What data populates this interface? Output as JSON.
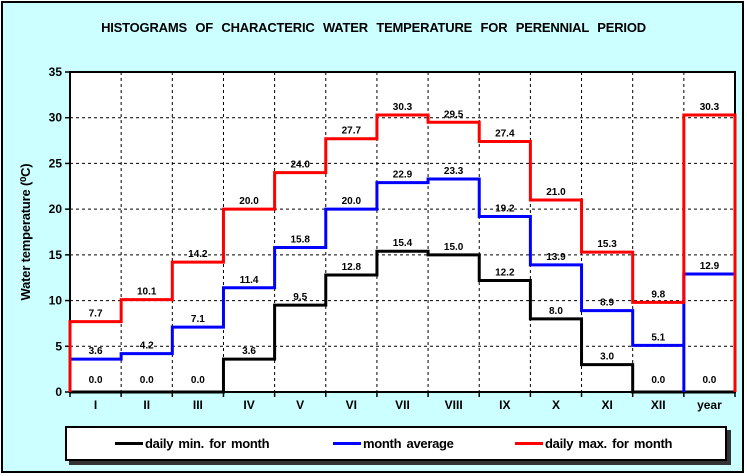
{
  "frame": {
    "background": "#CCFFFF",
    "border_color": "#000000",
    "plot_background": "#FFFFFF"
  },
  "chart_data": {
    "type": "step-histogram",
    "title": "HISTOGRAMS OF CHARACTERIC WATER TEMPERATURE FOR PERENNIAL PERIOD",
    "xlabel": "",
    "ylabel": "Water temperature (⁰C)",
    "categories": [
      "I",
      "II",
      "III",
      "IV",
      "V",
      "VI",
      "VII",
      "VIII",
      "IX",
      "X",
      "XI",
      "XII",
      "year"
    ],
    "ylim": [
      0,
      35
    ],
    "ytick_step": 5,
    "grid": true,
    "gridline_style": "dashed",
    "legend_position": "bottom",
    "series": [
      {
        "name": "daily min. for month",
        "color": "#000000",
        "values": [
          0.0,
          0.0,
          0.0,
          3.6,
          9.5,
          12.8,
          15.4,
          15.0,
          12.2,
          8.0,
          3.0,
          0.0,
          0.0
        ]
      },
      {
        "name": "month average",
        "color": "#0000FF",
        "values": [
          3.6,
          4.2,
          7.1,
          11.4,
          15.8,
          20.0,
          22.9,
          23.3,
          19.2,
          13.9,
          8.9,
          5.1,
          12.9
        ],
        "drops_to_zero_before_last": true
      },
      {
        "name": "daily max. for month",
        "color": "#FF0000",
        "values": [
          7.7,
          10.1,
          14.2,
          20.0,
          24.0,
          27.7,
          30.3,
          29.5,
          27.4,
          21.0,
          15.3,
          9.8,
          30.3
        ]
      }
    ]
  }
}
